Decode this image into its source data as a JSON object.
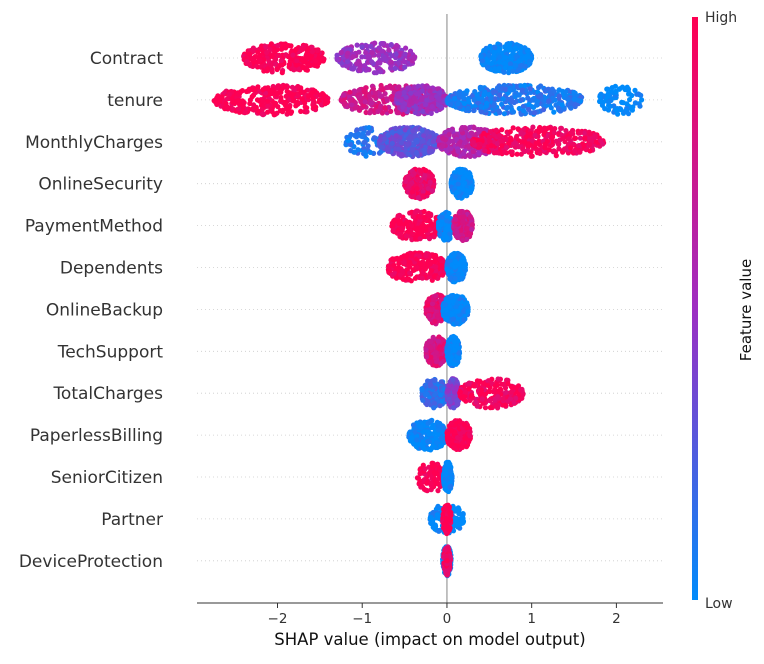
{
  "chart_data": {
    "type": "scatter",
    "subtype": "shap-beeswarm-summary",
    "title": "",
    "xlabel": "SHAP value (impact on model output)",
    "xlim": [
      -2.95,
      2.55
    ],
    "x_ticks": [
      -2,
      -1,
      0,
      1,
      2
    ],
    "x_tick_labels": [
      "−2",
      "−1",
      "0",
      "1",
      "2"
    ],
    "zero_line": true,
    "grid": false,
    "colorbar": {
      "label": "Feature value",
      "high_label": "High",
      "low_label": "Low",
      "high_color": "#ff0052",
      "mid_color": "#9e2ec2",
      "low_color": "#008bfb"
    },
    "features": [
      {
        "name": "Contract",
        "clusters": [
          {
            "x_min": -2.4,
            "x_max": -1.45,
            "value": 1.0,
            "n": 300
          },
          {
            "x_min": -1.3,
            "x_max": -0.38,
            "value": 0.5,
            "n": 230
          },
          {
            "x_min": 0.4,
            "x_max": 1.0,
            "value": 0.0,
            "n": 380
          }
        ]
      },
      {
        "name": "tenure",
        "clusters": [
          {
            "x_min": -2.75,
            "x_max": -1.4,
            "value": 1.0,
            "n": 320
          },
          {
            "x_min": -1.25,
            "x_max": -0.05,
            "value": 0.75,
            "n": 300
          },
          {
            "x_min": -0.6,
            "x_max": 0.0,
            "value": 0.5,
            "n": 260
          },
          {
            "x_min": 0.0,
            "x_max": 1.6,
            "value": 0.1,
            "n": 420
          },
          {
            "x_min": 1.8,
            "x_max": 2.3,
            "value": 0.0,
            "n": 90
          }
        ]
      },
      {
        "name": "MonthlyCharges",
        "clusters": [
          {
            "x_min": -1.2,
            "x_max": -0.7,
            "value": 0.1,
            "n": 80
          },
          {
            "x_min": -0.8,
            "x_max": -0.1,
            "value": 0.3,
            "n": 320
          },
          {
            "x_min": -0.1,
            "x_max": 0.6,
            "value": 0.6,
            "n": 300
          },
          {
            "x_min": 0.3,
            "x_max": 1.85,
            "value": 0.95,
            "n": 360
          }
        ]
      },
      {
        "name": "OnlineSecurity",
        "clusters": [
          {
            "x_min": -0.5,
            "x_max": -0.15,
            "value": 0.9,
            "n": 200
          },
          {
            "x_min": 0.05,
            "x_max": 0.3,
            "value": 0.0,
            "n": 260
          }
        ]
      },
      {
        "name": "PaymentMethod",
        "clusters": [
          {
            "x_min": -0.65,
            "x_max": -0.05,
            "value": 1.0,
            "n": 220
          },
          {
            "x_min": -0.1,
            "x_max": 0.08,
            "value": 0.0,
            "n": 120
          },
          {
            "x_min": 0.08,
            "x_max": 0.3,
            "value": 0.75,
            "n": 200
          }
        ]
      },
      {
        "name": "Dependents",
        "clusters": [
          {
            "x_min": -0.7,
            "x_max": 0.0,
            "value": 1.0,
            "n": 260
          },
          {
            "x_min": 0.0,
            "x_max": 0.22,
            "value": 0.0,
            "n": 200
          }
        ]
      },
      {
        "name": "OnlineBackup",
        "clusters": [
          {
            "x_min": -0.25,
            "x_max": 0.02,
            "value": 0.85,
            "n": 240
          },
          {
            "x_min": -0.05,
            "x_max": 0.25,
            "value": 0.0,
            "n": 240
          }
        ]
      },
      {
        "name": "TechSupport",
        "clusters": [
          {
            "x_min": -0.25,
            "x_max": 0.0,
            "value": 0.8,
            "n": 200
          },
          {
            "x_min": 0.0,
            "x_max": 0.15,
            "value": 0.0,
            "n": 220
          }
        ]
      },
      {
        "name": "TotalCharges",
        "clusters": [
          {
            "x_min": -0.3,
            "x_max": 0.0,
            "value": 0.15,
            "n": 160
          },
          {
            "x_min": 0.0,
            "x_max": 0.15,
            "value": 0.4,
            "n": 160
          },
          {
            "x_min": 0.15,
            "x_max": 0.9,
            "value": 0.95,
            "n": 220
          }
        ]
      },
      {
        "name": "PaperlessBilling",
        "clusters": [
          {
            "x_min": -0.45,
            "x_max": 0.0,
            "value": 0.0,
            "n": 220
          },
          {
            "x_min": 0.0,
            "x_max": 0.28,
            "value": 1.0,
            "n": 220
          }
        ]
      },
      {
        "name": "SeniorCitizen",
        "clusters": [
          {
            "x_min": -0.35,
            "x_max": 0.0,
            "value": 1.0,
            "n": 100
          },
          {
            "x_min": -0.04,
            "x_max": 0.06,
            "value": 0.0,
            "n": 200
          }
        ]
      },
      {
        "name": "Partner",
        "clusters": [
          {
            "x_min": -0.2,
            "x_max": 0.2,
            "value": 0.0,
            "n": 120
          },
          {
            "x_min": -0.05,
            "x_max": 0.05,
            "value": 1.0,
            "n": 120
          }
        ]
      },
      {
        "name": "DeviceProtection",
        "clusters": [
          {
            "x_min": -0.05,
            "x_max": 0.05,
            "value": 0.0,
            "n": 140
          },
          {
            "x_min": -0.04,
            "x_max": 0.04,
            "value": 0.9,
            "n": 120
          }
        ]
      }
    ]
  }
}
